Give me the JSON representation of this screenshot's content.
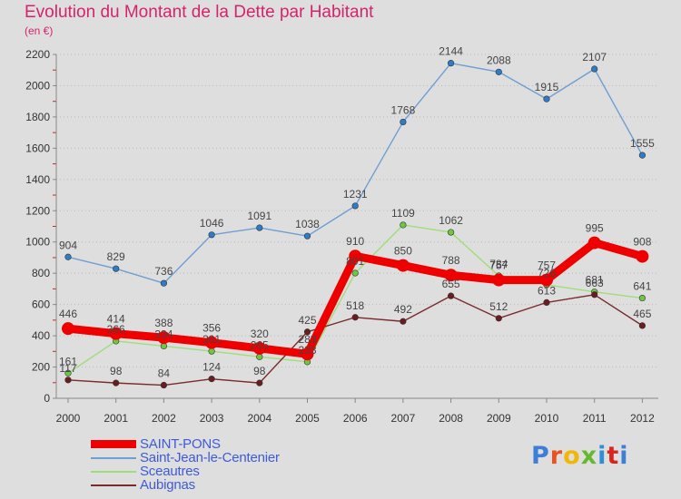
{
  "header": {
    "title": "Evolution du Montant de la Dette par Habitant",
    "subtitle": "(en €)"
  },
  "logo": "Proxiti",
  "chart_data": {
    "type": "line",
    "title": "Evolution du Montant de la Dette par Habitant",
    "subtitle": "(en €)",
    "x": [
      "2000",
      "2001",
      "2002",
      "2003",
      "2004",
      "2005",
      "2006",
      "2007",
      "2008",
      "2009",
      "2010",
      "2011",
      "2012"
    ],
    "ylim": [
      0,
      2200
    ],
    "yticks": [
      0,
      200,
      400,
      600,
      800,
      1000,
      1200,
      1400,
      1600,
      1800,
      2000,
      2200
    ],
    "grid": "dotted horizontal",
    "legend": "bottom-left",
    "series": [
      {
        "name": "Saint-Jean-le-Centenier",
        "color": "#6e9fd3",
        "marker": "#2e7bc6",
        "values": [
          904,
          829,
          736,
          1046,
          1091,
          1038,
          1231,
          1768,
          2144,
          2088,
          1915,
          2107,
          1555
        ]
      },
      {
        "name": "Sceautres",
        "color": "#9ede7a",
        "marker": "#6cc83e",
        "values": [
          161,
          366,
          334,
          301,
          265,
          233,
          801,
          1109,
          1062,
          784,
          726,
          681,
          641
        ]
      },
      {
        "name": "Aubignas",
        "color": "#7a2b2b",
        "marker": "#6b1d1d",
        "values": [
          117,
          98,
          84,
          124,
          98,
          425,
          518,
          492,
          655,
          512,
          613,
          663,
          465
        ]
      },
      {
        "name": "SAINT-PONS",
        "color": "#ee0000",
        "marker": "#ee0000",
        "values": [
          446,
          414,
          388,
          356,
          320,
          283,
          910,
          850,
          788,
          757,
          757,
          995,
          908
        ]
      }
    ]
  }
}
